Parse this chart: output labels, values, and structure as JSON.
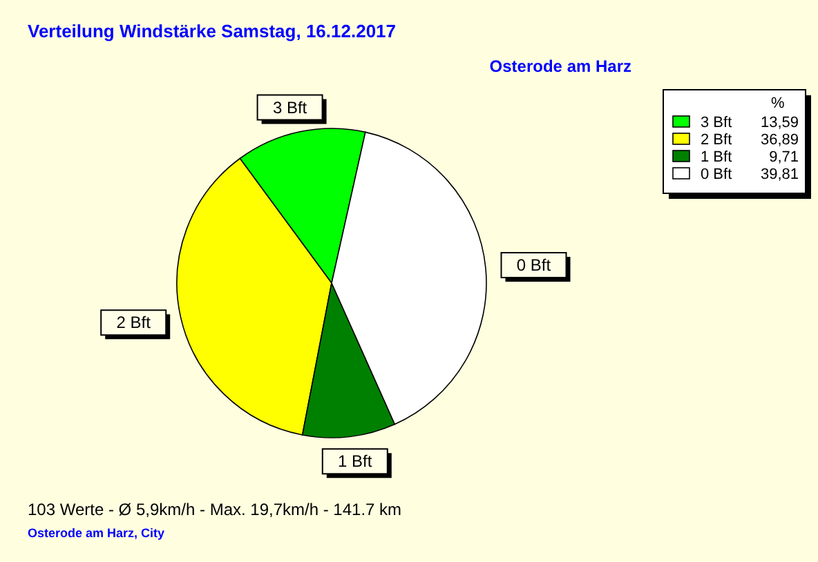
{
  "chart_data": {
    "type": "pie",
    "title": "Verteilung Windstärke  Samstag, 16.12.2017",
    "subtitle": "Osterode am Harz",
    "categories": [
      "3 Bft",
      "2 Bft",
      "1 Bft",
      "0 Bft"
    ],
    "values": [
      13.59,
      36.89,
      9.71,
      39.81
    ],
    "value_labels": [
      "13,59",
      "36,89",
      "9,71",
      "39,81"
    ],
    "colors": [
      "#00ff00",
      "#ffff00",
      "#008000",
      "#ffffff"
    ],
    "legend": "top right",
    "legend_title": "%",
    "annotations": [
      "103 Werte   -   Ø 5,9km/h  -  Max. 19,7km/h   -   141.7 km",
      "Osterode am Harz, City"
    ]
  }
}
